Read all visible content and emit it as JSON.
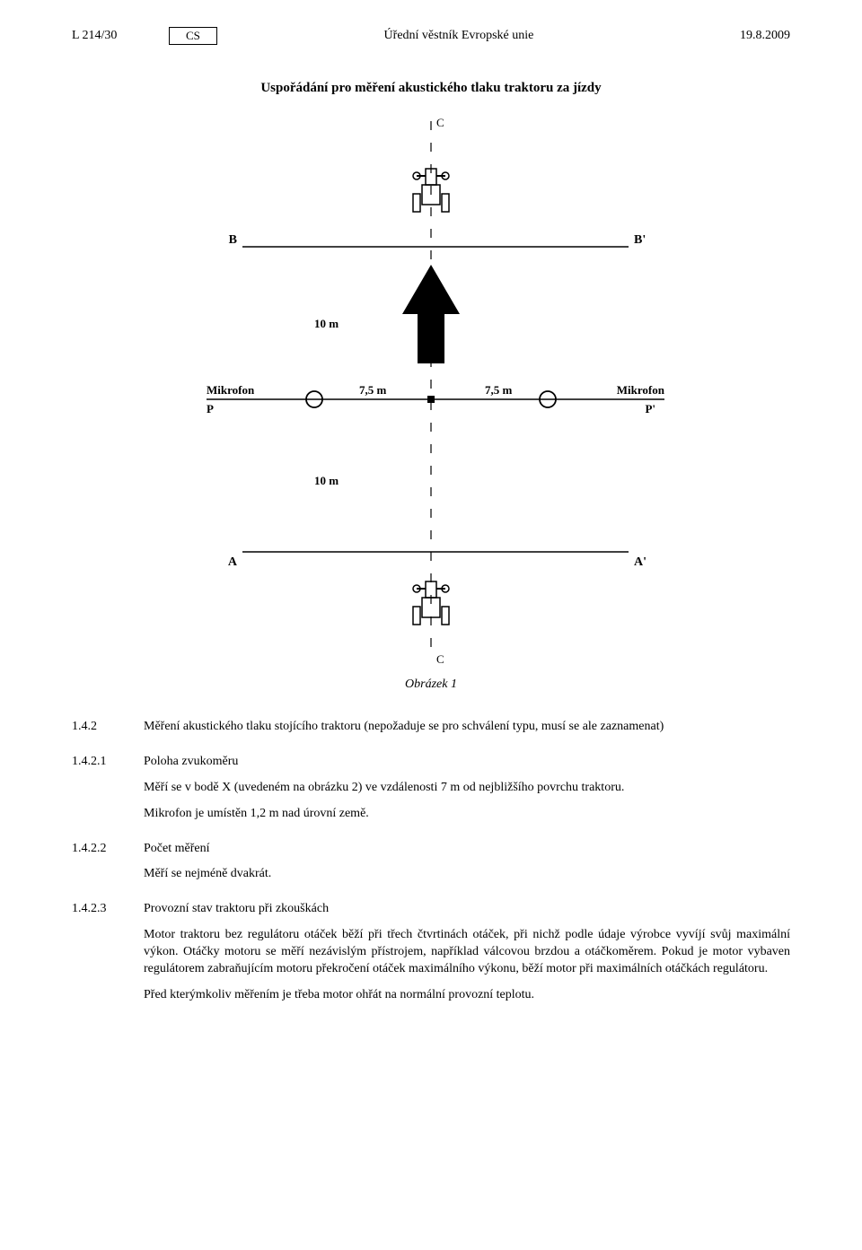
{
  "header": {
    "left": "L 214/30",
    "lang": "CS",
    "center": "Úřední věstník Evropské unie",
    "right": "19.8.2009"
  },
  "section_title": "Uspořádání pro měření akustického tlaku traktoru za jízdy",
  "diagram": {
    "labels": {
      "C_top": "C",
      "C_bottom": "C",
      "B": "B",
      "B_prime": "B'",
      "A": "A",
      "A_prime": "A'",
      "P": "P",
      "P_prime": "P'",
      "Mikrofon_left": "Mikrofon",
      "Mikrofon_right": "Mikrofon",
      "dist_10m_top": "10 m",
      "dist_10m_bottom": "10 m",
      "dist_75_left": "7,5 m",
      "dist_75_right": "7,5 m"
    }
  },
  "caption": "Obrázek 1",
  "paragraphs": [
    {
      "num": "1.4.2",
      "lines": [
        "Měření akustického tlaku stojícího traktoru (nepožaduje se pro schválení typu, musí se ale zaznamenat)"
      ]
    },
    {
      "num": "1.4.2.1",
      "lines": [
        "Poloha zvukoměru",
        "Měří se v bodě X (uvedeném na obrázku 2) ve vzdálenosti 7 m od nejbližšího povrchu traktoru.",
        "Mikrofon je umístěn 1,2 m nad úrovní země."
      ]
    },
    {
      "num": "1.4.2.2",
      "lines": [
        "Počet měření",
        "Měří se nejméně dvakrát."
      ]
    },
    {
      "num": "1.4.2.3",
      "lines": [
        "Provozní stav traktoru při zkouškách",
        "Motor traktoru bez regulátoru otáček běží při třech čtvrtinách otáček, při nichž podle údaje výrobce vyvíjí svůj maximální výkon. Otáčky motoru se měří nezávislým přístrojem, například válcovou brzdou a otáčkoměrem. Pokud je motor vybaven regulátorem zabraňujícím motoru překročení otáček maximálního výkonu, běží motor při maximálních otáčkách regulátoru.",
        "Před kterýmkoliv měřením je třeba motor ohřát na normální provozní teplotu."
      ]
    }
  ]
}
